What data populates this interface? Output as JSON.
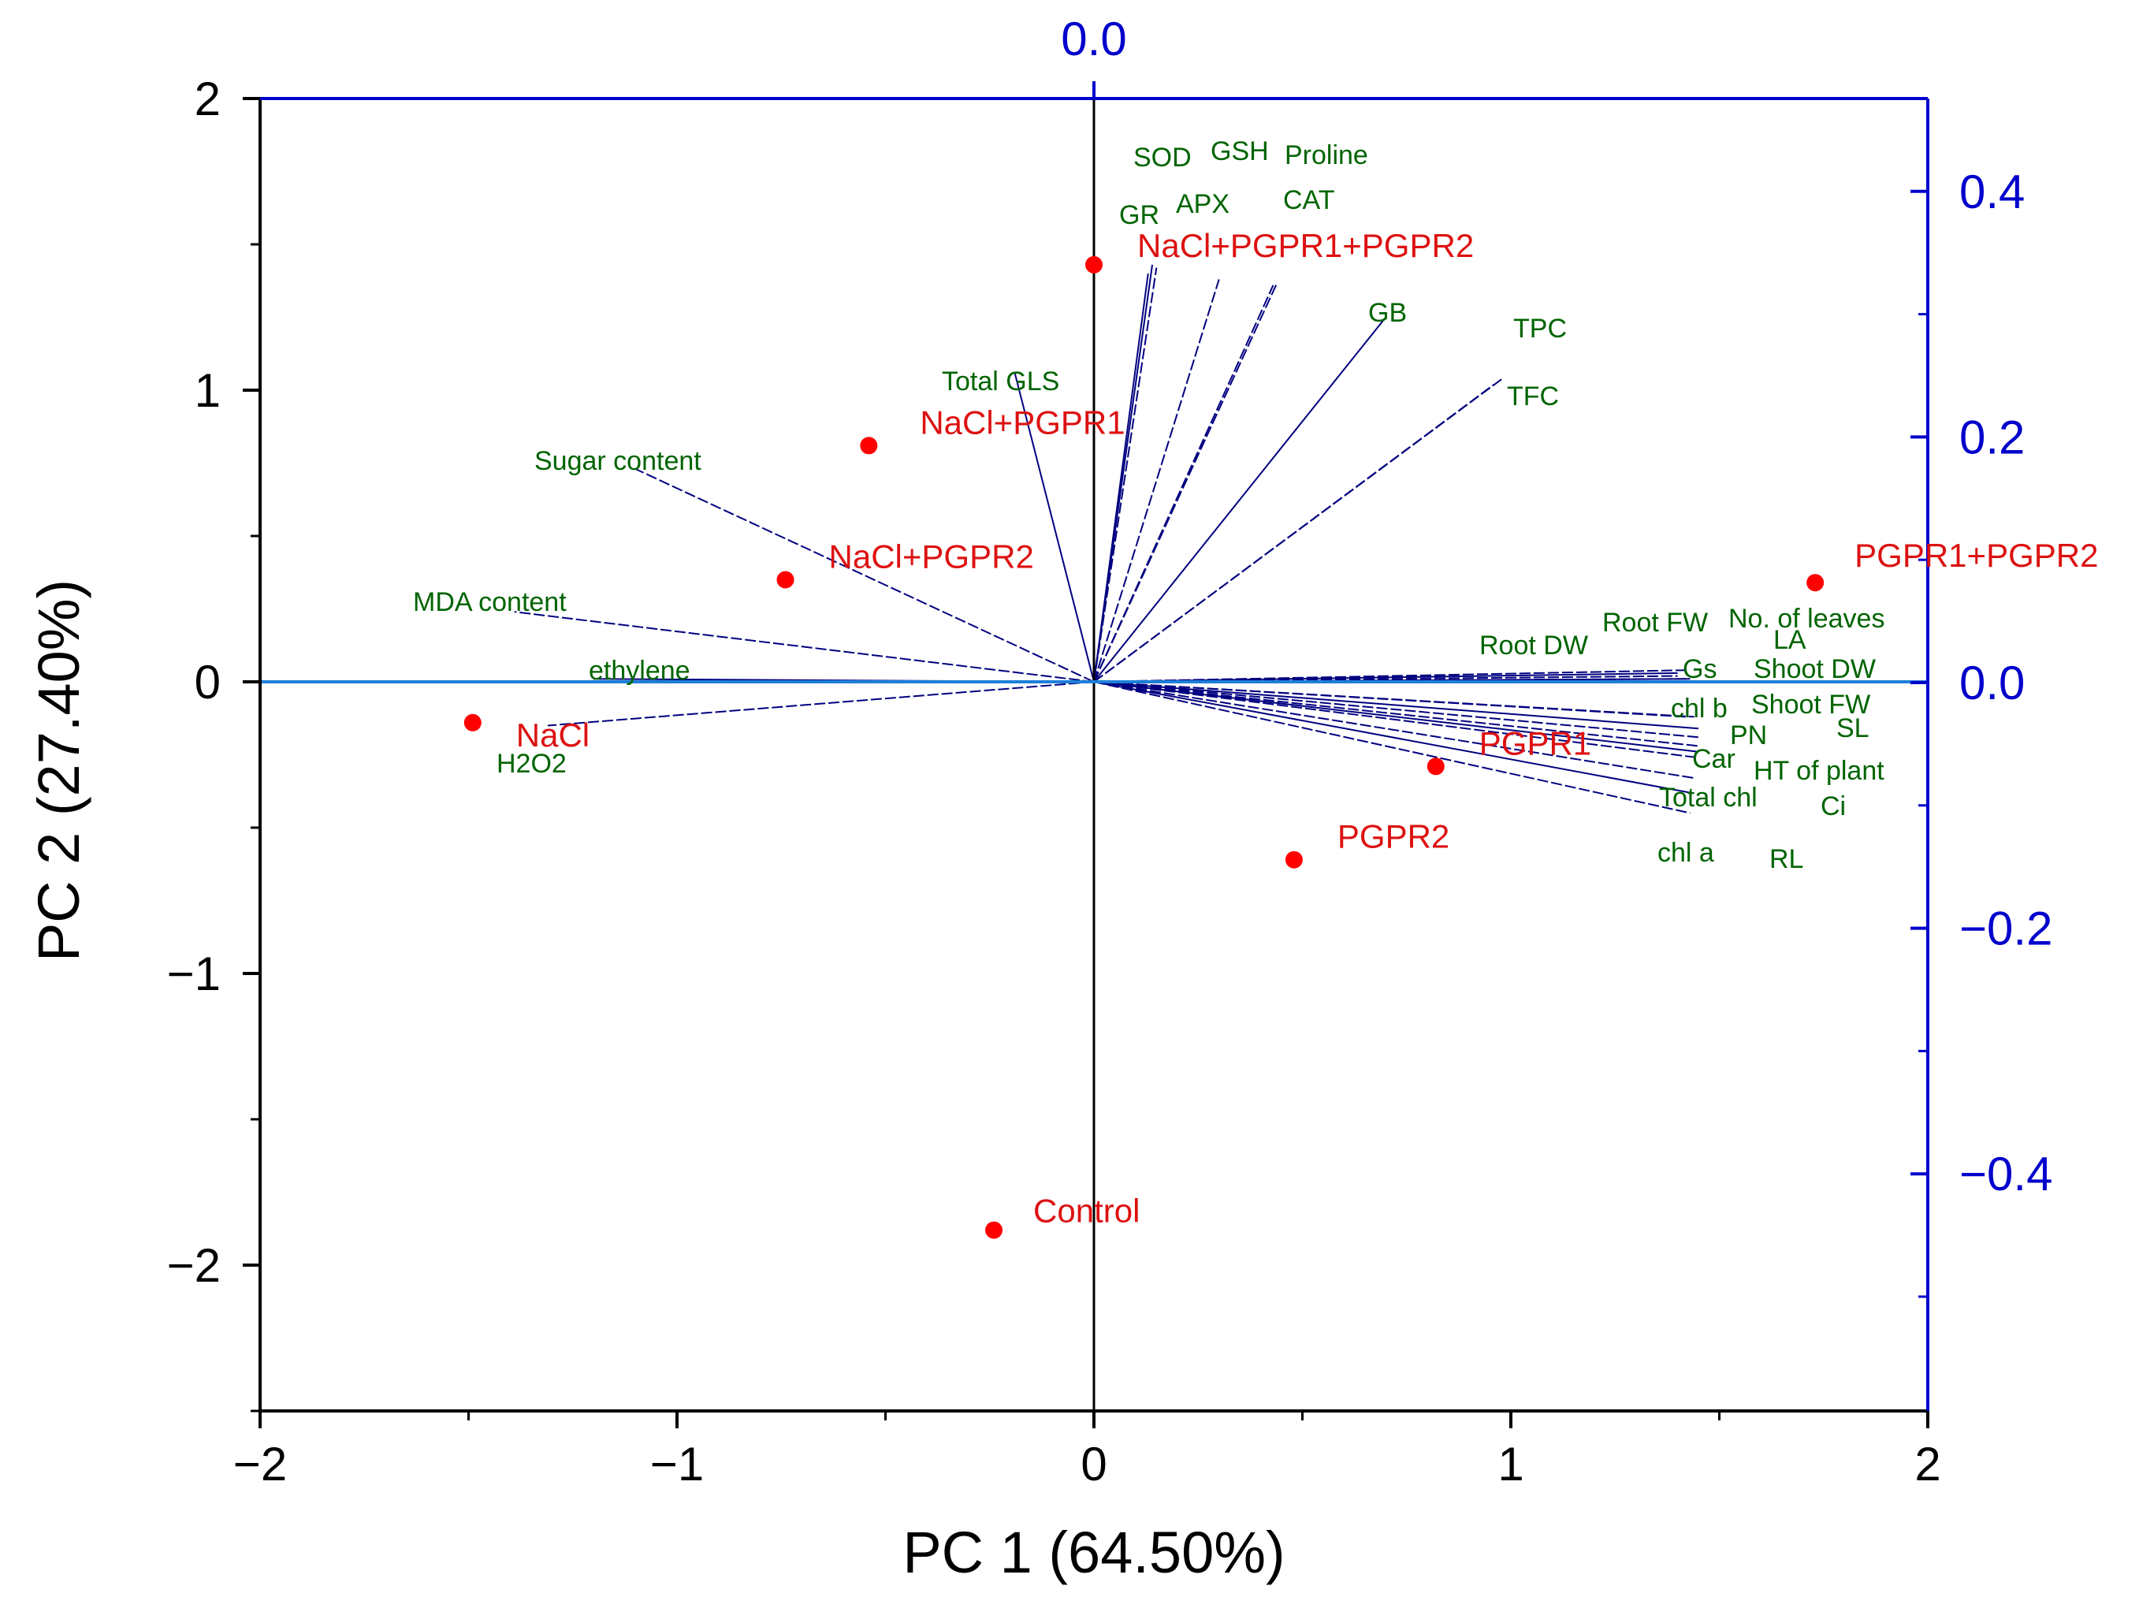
{
  "chart_data": {
    "type": "scatter",
    "subtype": "PCA biplot",
    "xlabel": "PC 1 (64.50%)",
    "ylabel": "PC 2 (27.40%)",
    "xlim": [
      -2,
      2
    ],
    "ylim": [
      -2.5,
      2
    ],
    "x_ticks": [
      -2,
      -1,
      0,
      1,
      2
    ],
    "x_tick_labels": [
      "−2",
      "−1",
      "0",
      "1",
      "2"
    ],
    "y_ticks": [
      -2,
      -1,
      0,
      1,
      2
    ],
    "y_tick_labels": [
      "−2",
      "−1",
      "0",
      "1",
      "2"
    ],
    "secondary_axes": {
      "top_ticks": [
        0.0
      ],
      "top_tick_labels": [
        "0.0"
      ],
      "right_ticks": [
        0.4,
        0.2,
        0.0,
        -0.2,
        -0.4
      ],
      "right_tick_labels": [
        "0.4",
        "0.2",
        "0.0",
        "−0.2",
        "−0.4"
      ],
      "color": "#0000cc"
    },
    "grid": false,
    "colors": {
      "observations": "#ff0000",
      "observation_labels": "#dd1111",
      "variable_labels": "#006400",
      "loadings": "#000080",
      "zero_line": "#1e7fd8",
      "secondary_axis": "#0000cc"
    },
    "observations": [
      {
        "name": "Control",
        "x": -0.24,
        "y": -1.88
      },
      {
        "name": "NaCl",
        "x": -1.49,
        "y": -0.14
      },
      {
        "name": "NaCl+PGPR1",
        "x": -0.54,
        "y": 0.81
      },
      {
        "name": "NaCl+PGPR2",
        "x": -0.74,
        "y": 0.35
      },
      {
        "name": "NaCl+PGPR1+PGPR2",
        "x": 0.0,
        "y": 1.43
      },
      {
        "name": "PGPR1",
        "x": 0.82,
        "y": -0.29
      },
      {
        "name": "PGPR2",
        "x": 0.48,
        "y": -0.61
      },
      {
        "name": "PGPR1+PGPR2",
        "x": 1.73,
        "y": 0.34
      }
    ],
    "variables": [
      {
        "name": "SOD",
        "x": 0.14,
        "y": 1.43
      },
      {
        "name": "GSH",
        "x": 0.15,
        "y": 1.42
      },
      {
        "name": "Proline",
        "x": 0.44,
        "y": 1.37
      },
      {
        "name": "GR",
        "x": 0.13,
        "y": 1.4
      },
      {
        "name": "APX",
        "x": 0.3,
        "y": 1.38
      },
      {
        "name": "CAT",
        "x": 0.43,
        "y": 1.36
      },
      {
        "name": "GB",
        "x": 0.7,
        "y": 1.25
      },
      {
        "name": "TPC",
        "x": 0.98,
        "y": 1.04
      },
      {
        "name": "TFC",
        "x": 0.96,
        "y": 1.02
      },
      {
        "name": "Total GLS",
        "x": -0.19,
        "y": 1.06
      },
      {
        "name": "Sugar content",
        "x": -1.1,
        "y": 0.73
      },
      {
        "name": "MDA content",
        "x": -1.39,
        "y": 0.24
      },
      {
        "name": "ethylene",
        "x": -1.2,
        "y": 0.01
      },
      {
        "name": "H2O2",
        "x": -1.31,
        "y": -0.15
      },
      {
        "name": "Root FW",
        "x": 1.42,
        "y": 0.04
      },
      {
        "name": "No. of leaves",
        "x": 1.4,
        "y": 0.03
      },
      {
        "name": "Root DW",
        "x": 1.4,
        "y": 0.02
      },
      {
        "name": "LA",
        "x": 1.42,
        "y": 0.01
      },
      {
        "name": "Gs",
        "x": 1.43,
        "y": 0.01
      },
      {
        "name": "Shoot DW",
        "x": 1.42,
        "y": 0.0
      },
      {
        "name": "chl b",
        "x": 1.44,
        "y": -0.12
      },
      {
        "name": "Shoot FW",
        "x": 1.45,
        "y": -0.16
      },
      {
        "name": "SL",
        "x": 1.45,
        "y": -0.19
      },
      {
        "name": "PN",
        "x": 1.45,
        "y": -0.22
      },
      {
        "name": "Car",
        "x": 1.45,
        "y": -0.24
      },
      {
        "name": "HT of plant",
        "x": 1.45,
        "y": -0.26
      },
      {
        "name": "Total chl",
        "x": 1.44,
        "y": -0.33
      },
      {
        "name": "Ci",
        "x": 1.43,
        "y": -0.38
      },
      {
        "name": "chl a",
        "x": 1.43,
        "y": -0.45
      },
      {
        "name": "RL",
        "x": 1.42,
        "y": -0.12
      }
    ]
  }
}
